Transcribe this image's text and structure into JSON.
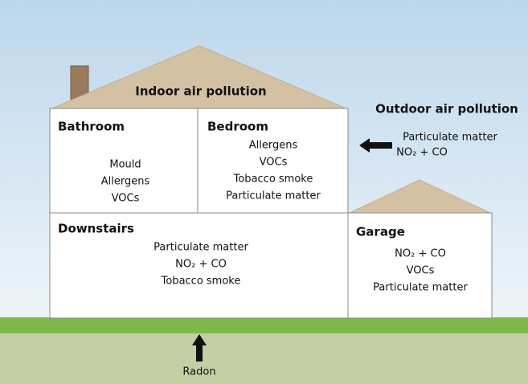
{
  "roof_title": "Indoor air pollution",
  "outdoor": {
    "title": "Outdoor air pollution",
    "items": [
      "Particulate matter",
      "NO₂ + CO"
    ]
  },
  "rooms": [
    {
      "name": "Bathroom",
      "items": [
        "Mould",
        "Allergens",
        "VOCs"
      ]
    },
    {
      "name": "Bedroom",
      "items": [
        "Allergens",
        "VOCs",
        "Tobacco smoke",
        "Particulate matter"
      ]
    },
    {
      "name": "Downstairs",
      "items": [
        "Particulate matter",
        "NO₂ + CO",
        "Tobacco smoke"
      ]
    },
    {
      "name": "Garage",
      "items": [
        "NO₂ + CO",
        "VOCs",
        "Particulate matter"
      ]
    }
  ],
  "ground_source": "Radon"
}
